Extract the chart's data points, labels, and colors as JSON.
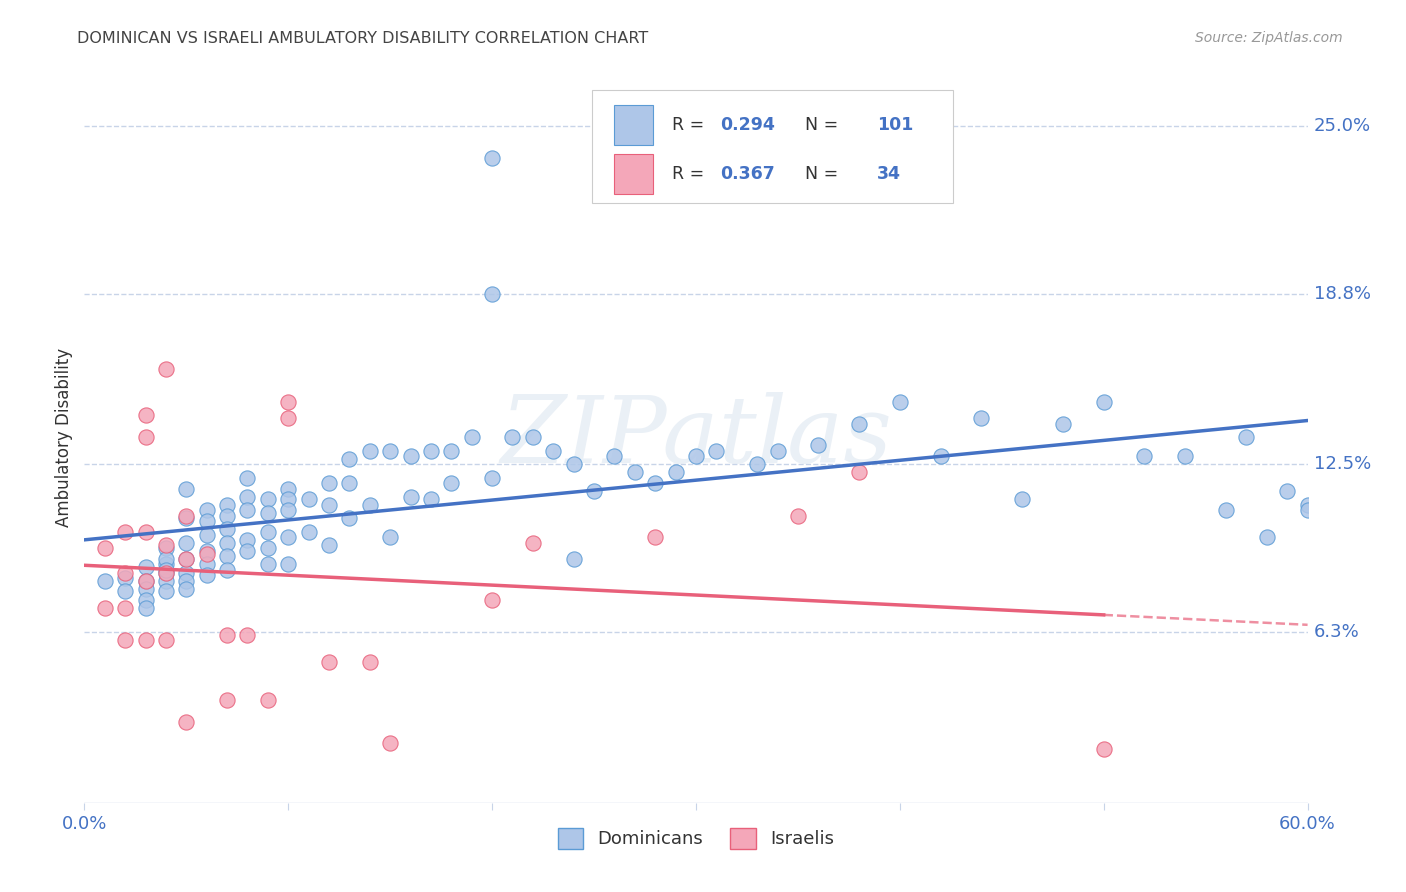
{
  "title": "DOMINICAN VS ISRAELI AMBULATORY DISABILITY CORRELATION CHART",
  "source": "Source: ZipAtlas.com",
  "ylabel": "Ambulatory Disability",
  "xlim": [
    0.0,
    0.6
  ],
  "ylim": [
    0.0,
    0.27
  ],
  "yticks": [
    0.063,
    0.125,
    0.188,
    0.25
  ],
  "ytick_labels": [
    "6.3%",
    "12.5%",
    "18.8%",
    "25.0%"
  ],
  "dominican_color": "#aec6e8",
  "dominican_edge_color": "#5b9bd5",
  "israeli_color": "#f4a7b9",
  "israeli_edge_color": "#e8607a",
  "dominican_line_color": "#4472c4",
  "israeli_line_color": "#e8607a",
  "R_dominican": "0.294",
  "N_dominican": "101",
  "R_israeli": "0.367",
  "N_israeli": "34",
  "watermark": "ZIPatlas",
  "background_color": "#ffffff",
  "grid_color": "#c8d4e8",
  "axis_color": "#888888",
  "text_color": "#333333",
  "blue_label_color": "#4472c4",
  "dominican_x": [
    0.01,
    0.02,
    0.02,
    0.03,
    0.03,
    0.03,
    0.03,
    0.03,
    0.04,
    0.04,
    0.04,
    0.04,
    0.04,
    0.04,
    0.04,
    0.05,
    0.05,
    0.05,
    0.05,
    0.05,
    0.05,
    0.05,
    0.06,
    0.06,
    0.06,
    0.06,
    0.06,
    0.06,
    0.07,
    0.07,
    0.07,
    0.07,
    0.07,
    0.07,
    0.08,
    0.08,
    0.08,
    0.08,
    0.08,
    0.09,
    0.09,
    0.09,
    0.09,
    0.09,
    0.1,
    0.1,
    0.1,
    0.1,
    0.1,
    0.11,
    0.11,
    0.12,
    0.12,
    0.12,
    0.13,
    0.13,
    0.13,
    0.14,
    0.14,
    0.15,
    0.15,
    0.16,
    0.16,
    0.17,
    0.17,
    0.18,
    0.18,
    0.19,
    0.2,
    0.2,
    0.2,
    0.21,
    0.22,
    0.23,
    0.24,
    0.24,
    0.25,
    0.26,
    0.27,
    0.28,
    0.29,
    0.3,
    0.31,
    0.33,
    0.34,
    0.36,
    0.38,
    0.4,
    0.42,
    0.44,
    0.46,
    0.48,
    0.5,
    0.52,
    0.54,
    0.56,
    0.57,
    0.58,
    0.59,
    0.6,
    0.6
  ],
  "dominican_y": [
    0.082,
    0.083,
    0.078,
    0.087,
    0.082,
    0.079,
    0.075,
    0.072,
    0.088,
    0.085,
    0.082,
    0.078,
    0.094,
    0.09,
    0.086,
    0.116,
    0.105,
    0.096,
    0.09,
    0.085,
    0.082,
    0.079,
    0.108,
    0.104,
    0.099,
    0.093,
    0.088,
    0.084,
    0.11,
    0.106,
    0.101,
    0.096,
    0.091,
    0.086,
    0.12,
    0.113,
    0.108,
    0.097,
    0.093,
    0.112,
    0.107,
    0.1,
    0.094,
    0.088,
    0.116,
    0.112,
    0.108,
    0.098,
    0.088,
    0.112,
    0.1,
    0.118,
    0.11,
    0.095,
    0.127,
    0.118,
    0.105,
    0.13,
    0.11,
    0.13,
    0.098,
    0.128,
    0.113,
    0.13,
    0.112,
    0.13,
    0.118,
    0.135,
    0.238,
    0.188,
    0.12,
    0.135,
    0.135,
    0.13,
    0.09,
    0.125,
    0.115,
    0.128,
    0.122,
    0.118,
    0.122,
    0.128,
    0.13,
    0.125,
    0.13,
    0.132,
    0.14,
    0.148,
    0.128,
    0.142,
    0.112,
    0.14,
    0.148,
    0.128,
    0.128,
    0.108,
    0.135,
    0.098,
    0.115,
    0.11,
    0.108
  ],
  "israeli_x": [
    0.01,
    0.01,
    0.02,
    0.02,
    0.02,
    0.02,
    0.03,
    0.03,
    0.03,
    0.03,
    0.03,
    0.04,
    0.04,
    0.04,
    0.04,
    0.05,
    0.05,
    0.05,
    0.06,
    0.07,
    0.07,
    0.08,
    0.09,
    0.1,
    0.1,
    0.12,
    0.14,
    0.15,
    0.2,
    0.22,
    0.28,
    0.35,
    0.38,
    0.5
  ],
  "israeli_y": [
    0.094,
    0.072,
    0.1,
    0.085,
    0.072,
    0.06,
    0.143,
    0.135,
    0.1,
    0.082,
    0.06,
    0.16,
    0.095,
    0.085,
    0.06,
    0.106,
    0.09,
    0.03,
    0.092,
    0.062,
    0.038,
    0.062,
    0.038,
    0.148,
    0.142,
    0.052,
    0.052,
    0.022,
    0.075,
    0.096,
    0.098,
    0.106,
    0.122,
    0.02
  ]
}
